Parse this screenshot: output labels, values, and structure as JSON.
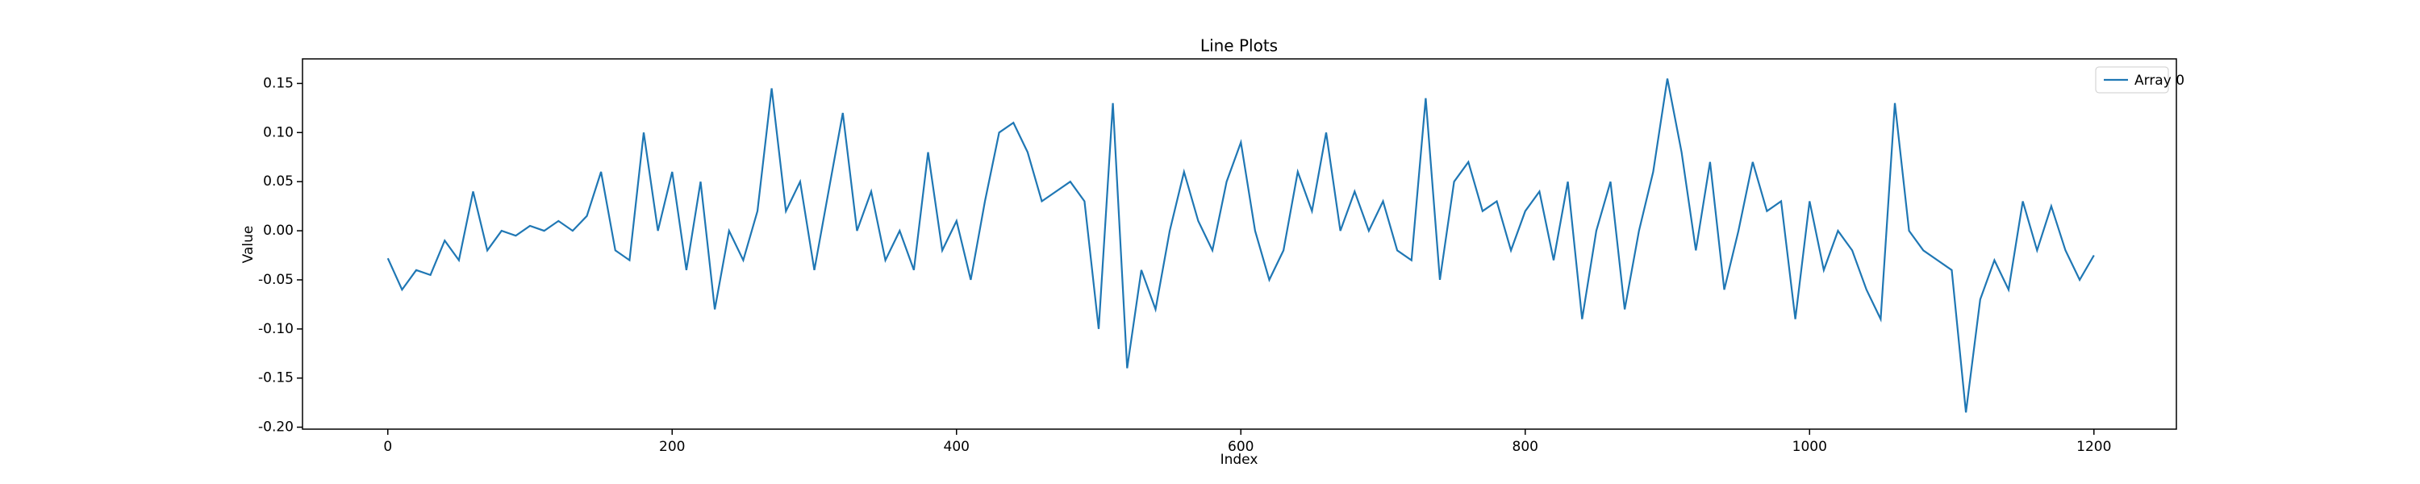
{
  "chart_data": {
    "type": "line",
    "title": "Line Plots",
    "x_label": "Index",
    "y_label": "Value",
    "x": [
      0,
      10,
      20,
      30,
      40,
      50,
      60,
      70,
      80,
      90,
      100,
      110,
      120,
      130,
      140,
      150,
      160,
      170,
      180,
      190,
      200,
      210,
      220,
      230,
      240,
      250,
      260,
      270,
      280,
      290,
      300,
      310,
      320,
      330,
      340,
      350,
      360,
      370,
      380,
      390,
      400,
      410,
      420,
      430,
      440,
      450,
      460,
      470,
      480,
      490,
      500,
      510,
      520,
      530,
      540,
      550,
      560,
      570,
      580,
      590,
      600,
      610,
      620,
      630,
      640,
      650,
      660,
      670,
      680,
      690,
      700,
      710,
      720,
      730,
      740,
      750,
      760,
      770,
      780,
      790,
      800,
      810,
      820,
      830,
      840,
      850,
      860,
      870,
      880,
      890,
      900,
      910,
      920,
      930,
      940,
      950,
      960,
      970,
      980,
      990,
      1000,
      1010,
      1020,
      1030,
      1040,
      1050,
      1060,
      1070,
      1080,
      1090,
      1100,
      1110,
      1120,
      1130,
      1140,
      1150,
      1160,
      1170,
      1180,
      1190,
      1200
    ],
    "series": [
      {
        "name": "Array 0",
        "color": "#1f77b4",
        "values": [
          -0.028,
          -0.06,
          -0.04,
          -0.045,
          -0.01,
          -0.03,
          0.04,
          -0.02,
          0.0,
          -0.005,
          0.005,
          0.0,
          0.01,
          0.0,
          0.015,
          0.06,
          -0.02,
          -0.03,
          0.1,
          0.0,
          0.06,
          -0.04,
          0.05,
          -0.08,
          0.0,
          -0.03,
          0.02,
          0.145,
          0.02,
          0.05,
          -0.04,
          0.04,
          0.12,
          0.0,
          0.04,
          -0.03,
          0.0,
          -0.04,
          0.08,
          -0.02,
          0.01,
          -0.05,
          0.03,
          0.1,
          0.11,
          0.08,
          0.03,
          0.04,
          0.05,
          0.03,
          -0.1,
          0.13,
          -0.14,
          -0.04,
          -0.08,
          0.0,
          0.06,
          0.01,
          -0.02,
          0.05,
          0.09,
          0.0,
          -0.05,
          -0.02,
          0.06,
          0.02,
          0.1,
          0.0,
          0.04,
          0.0,
          0.03,
          -0.02,
          -0.03,
          0.135,
          -0.05,
          0.05,
          0.07,
          0.02,
          0.03,
          -0.02,
          0.02,
          0.04,
          -0.03,
          0.05,
          -0.09,
          0.0,
          0.05,
          -0.08,
          0.0,
          0.06,
          0.155,
          0.08,
          -0.02,
          0.07,
          -0.06,
          0.0,
          0.07,
          0.02,
          0.03,
          -0.09,
          0.03,
          -0.04,
          0.0,
          -0.02,
          -0.06,
          -0.09,
          0.13,
          0.0,
          -0.02,
          -0.03,
          -0.04,
          -0.185,
          -0.07,
          -0.03,
          -0.06,
          0.03,
          -0.02,
          0.025,
          -0.02,
          -0.05,
          -0.025
        ]
      }
    ],
    "xlim": [
      -60,
      1258
    ],
    "ylim": [
      -0.202,
      0.175
    ],
    "xticks": [
      0,
      200,
      400,
      600,
      800,
      1000,
      1200
    ],
    "yticks": [
      {
        "value": -0.2,
        "label": "-0.20"
      },
      -0.15,
      {
        "value": -0.1,
        "label": "-0.10"
      },
      -0.05,
      {
        "value": 0,
        "label": "0.00"
      },
      0.05,
      {
        "value": 0.1,
        "label": "0.10"
      },
      0.15
    ],
    "legend": "upper right",
    "grid": false
  }
}
